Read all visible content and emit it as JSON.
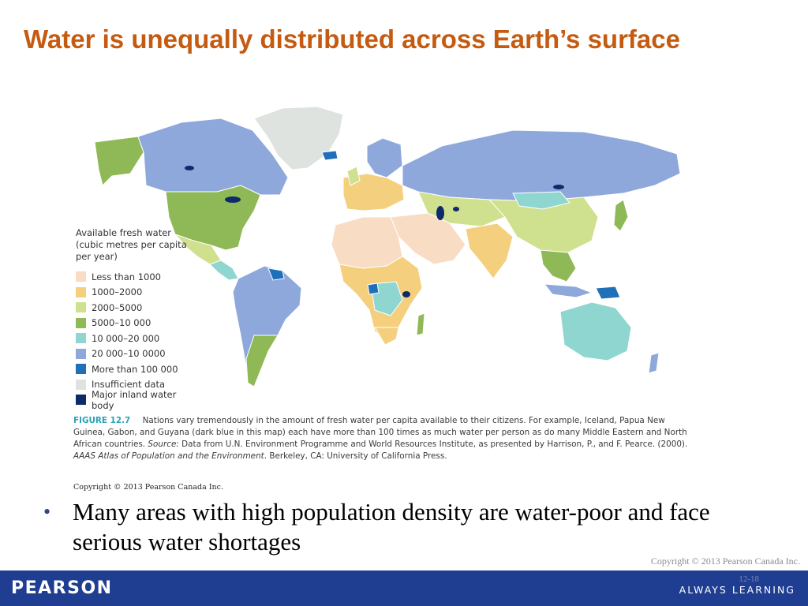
{
  "slide": {
    "title": "Water is unequally distributed across Earth’s surface",
    "bullet_text": "Many areas with high population density are water-poor and face serious water shortages",
    "copyright": "Copyright © 2013 Pearson Canada Inc.",
    "slide_number": "12-18"
  },
  "footer": {
    "brand": "PEARSON",
    "tagline": "ALWAYS LEARNING",
    "bar_color": "#1f3e91"
  },
  "map": {
    "legend_title_lines": [
      "Available fresh water",
      "(cubic metres per capita",
      "per year)"
    ],
    "legend": [
      {
        "label": "Less than 1000",
        "color": "#f8dcc4"
      },
      {
        "label": "1000–2000",
        "color": "#f4cf7e"
      },
      {
        "label": "2000–5000",
        "color": "#cfe08e"
      },
      {
        "label": "5000–10 000",
        "color": "#8fb856"
      },
      {
        "label": "10 000–20 000",
        "color": "#8fd6d0"
      },
      {
        "label": "20 000–10 0000",
        "color": "#8fa8dc"
      },
      {
        "label": "More than 100 000",
        "color": "#1f6fb9"
      },
      {
        "label": "Insufficient data",
        "color": "#dfe3e0"
      },
      {
        "label": "Major inland water body",
        "color": "#0e2a68"
      }
    ]
  },
  "caption": {
    "figure_label": "FIGURE 12.7",
    "text": "Nations vary tremendously in the amount of fresh water per capita available to their citizens. For example, Iceland, Papua New Guinea, Gabon, and Guyana (dark blue in this map) each have more than 100 times as much water per person as do many Middle Eastern and North African countries.",
    "source_label": "Source:",
    "source_text": "Data from U.N. Environment Programme and World Resources Institute, as presented by Harrison, P., and F. Pearce. (2000).",
    "atlas_title": "AAAS Atlas of Population and the Environment",
    "publisher": ". Berkeley, CA: University of California Press.",
    "copyright": "Copyright © 2013 Pearson Canada Inc."
  }
}
